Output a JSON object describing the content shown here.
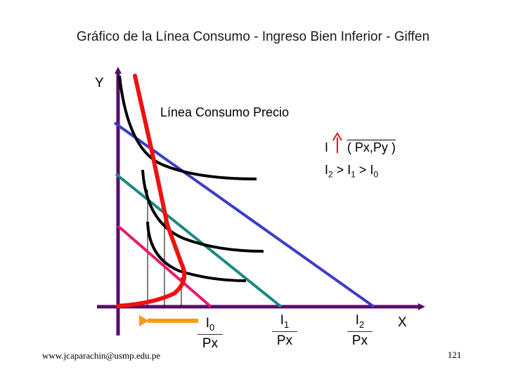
{
  "title": "Gráfico de la Línea Consumo - Ingreso Bien Inferior - Giffen",
  "axes": {
    "y_label": "Y",
    "x_label": "X"
  },
  "curve_label": "Línea Consumo Precio",
  "legend": {
    "income_symbol": "I",
    "price_vector": "( Px,Py )",
    "inequality": {
      "i2": "I",
      "s2": "2",
      "gt1": " > ",
      "i1": "I",
      "s1": "1",
      "gt2": " > ",
      "i0": "I",
      "s0": "0"
    }
  },
  "intercepts": [
    {
      "num": "I",
      "sub": "0",
      "den": "Px"
    },
    {
      "num": "I",
      "sub": "1",
      "den": "Px"
    },
    {
      "num": "I",
      "sub": "2",
      "den": "Px"
    }
  ],
  "footer": {
    "email": "www.jcaparachin@usmp.edu.pe",
    "page": "121"
  },
  "colors": {
    "axis": "#5b0a6e",
    "budget_i0": "#e8196b",
    "budget_i1": "#1a8a80",
    "budget_i2": "#3c3cc8",
    "consumption_curve": "#ee1111",
    "indifference": "#000000",
    "arrow": "#f39c12"
  }
}
